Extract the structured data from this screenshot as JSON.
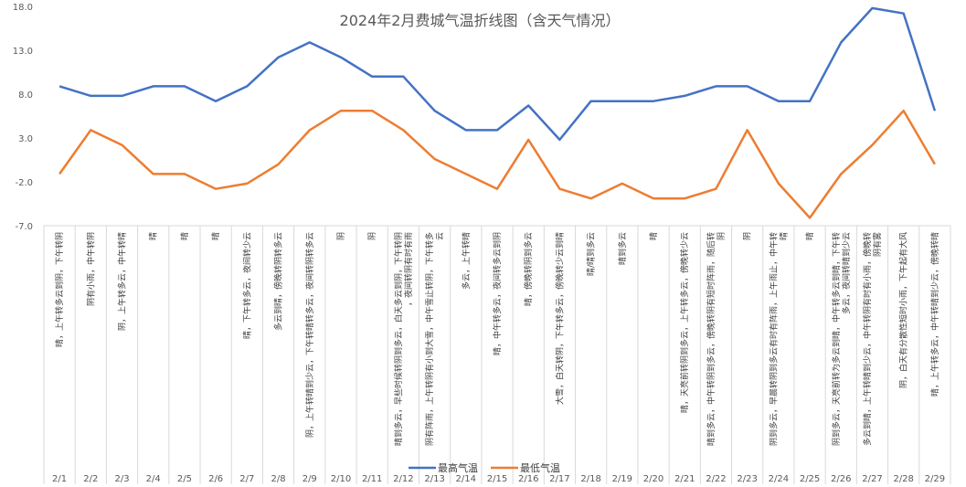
{
  "chart_data": {
    "type": "line",
    "title": "2024年2月费城气温折线图（含天气情况）",
    "categories": [
      "2/1",
      "2/2",
      "2/3",
      "2/4",
      "2/5",
      "2/6",
      "2/7",
      "2/8",
      "2/9",
      "2/10",
      "2/11",
      "2/12",
      "2/13",
      "2/14",
      "2/15",
      "2/16",
      "2/17",
      "2/18",
      "2/19",
      "2/20",
      "2/21",
      "2/22",
      "2/23",
      "2/24",
      "2/25",
      "2/26",
      "2/27",
      "2/28",
      "2/29"
    ],
    "weather": [
      "晴，上午转多云到阴，下午转阴",
      "阴有小雨，中午转阴",
      "阴，上午转多云，中午转晴",
      "晴",
      "晴",
      "晴",
      "晴，下午转多云，夜间转少云",
      "多云到晴，傍晚转阴转多云",
      "阴，上午转晴到少云，下午转晴转多云，夜间转阴转多云",
      "阴",
      "阴",
      "晴到多云，早些时候转阴到多云，白天多云到阴，下午转阴，夜间转阴有时有雨",
      "阴有阵雨，上午转阴有小到大雪，中午雪止转阴，下午转多云",
      "多云，上午转晴",
      "晴，中午转多云，夜间转多云到阴",
      "晴，傍晚转阴到多云",
      "大雪，白天转阴，下午转多云，傍晚转少云到晴",
      "晴/晴到多云",
      "晴到多云",
      "晴",
      "晴，天亮前转阴到多云，上午转多云，傍晚转少云",
      "晴到多云，中午转阴到多云，傍晚转阴有短时阵雨，随后转阴",
      "阴",
      "阴到多云，早晨转阴到多云有时有阵雨，上午雨止，中午转晴",
      "晴",
      "阴到多云，天亮前转为多云到晴，中午转多云到晴，下午转多云，夜间转晴到少云",
      "多云到晴，上午转晴到少云，中午转阴有时有小雨，傍晚转阴有雾",
      "阴，白天有分散性短时小雨，下午起有大风",
      "晴，上午转多云，中午转晴到少云，傍晚转晴"
    ],
    "series": [
      {
        "name": "最高气温",
        "color": "#4472C4",
        "values": [
          8.9,
          7.8,
          7.8,
          8.9,
          8.9,
          7.2,
          8.9,
          12.2,
          13.9,
          12.2,
          10.0,
          10.0,
          6.1,
          3.9,
          3.9,
          6.7,
          2.8,
          7.2,
          7.2,
          7.2,
          7.8,
          8.9,
          8.9,
          7.2,
          7.2,
          13.9,
          17.8,
          17.2,
          6.1
        ]
      },
      {
        "name": "最低气温",
        "color": "#ED7D31",
        "values": [
          -1.1,
          3.9,
          2.2,
          -1.1,
          -1.1,
          -2.8,
          -2.2,
          0.0,
          3.9,
          6.1,
          6.1,
          3.9,
          0.6,
          -1.1,
          -2.8,
          2.8,
          -2.8,
          -3.9,
          -2.2,
          -3.9,
          -3.9,
          -2.8,
          3.9,
          -2.2,
          -6.1,
          -1.1,
          2.2,
          6.1,
          0.0
        ]
      }
    ],
    "ylim": [
      -7.0,
      18.0
    ],
    "yticks": [
      "18.0",
      "13.0",
      "8.0",
      "3.0",
      "-2.0",
      "-7.0"
    ],
    "legend_position": "bottom-overlay",
    "grid": false
  }
}
